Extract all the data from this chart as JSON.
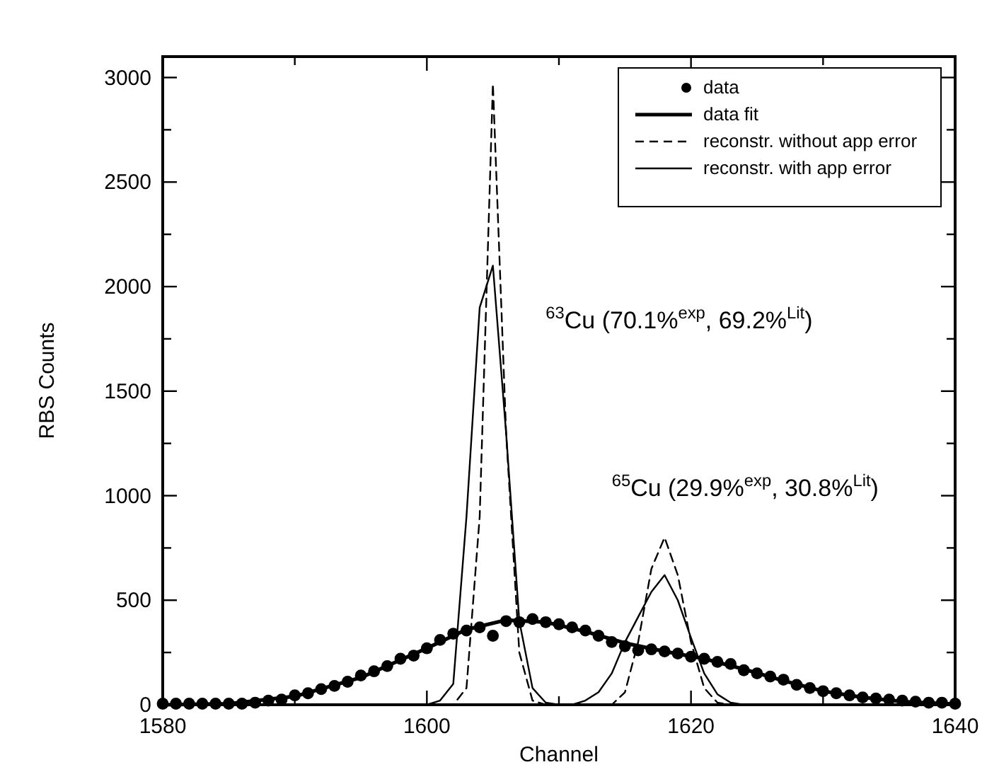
{
  "chart_data": {
    "type": "line",
    "xlabel": "Channel",
    "ylabel": "RBS Counts",
    "xlim": [
      1580,
      1640
    ],
    "ylim": [
      0,
      3100
    ],
    "xticks": [
      1580,
      {
        "value": 1590,
        "label": null
      },
      1600,
      {
        "value": 1610,
        "label": null
      },
      1620,
      {
        "value": 1630,
        "label": null
      },
      1640
    ],
    "yticks": [
      0,
      {
        "value": 250,
        "label": null
      },
      500,
      {
        "value": 750,
        "label": null
      },
      1000,
      {
        "value": 1250,
        "label": null
      },
      1500,
      {
        "value": 1750,
        "label": null
      },
      2000,
      {
        "value": 2250,
        "label": null
      },
      2500,
      {
        "value": 2750,
        "label": null
      },
      3000
    ],
    "grid": false,
    "legend": "top right",
    "annotations": [
      "$^{63}$Cu (70.1%$^{exp}$, 69.2%$^{Lit}$)",
      "$^{65}$Cu (29.9%$^{exp}$, 30.8%$^{Lit}$)"
    ],
    "series": [
      {
        "name": "data",
        "type": "scatter",
        "marker": "circle",
        "color": "#000000",
        "x": [
          1580,
          1581,
          1582,
          1583,
          1584,
          1585,
          1586,
          1587,
          1588,
          1589,
          1590,
          1591,
          1592,
          1593,
          1594,
          1595,
          1596,
          1597,
          1598,
          1599,
          1600,
          1601,
          1602,
          1603,
          1604,
          1605,
          1606,
          1607,
          1608,
          1609,
          1610,
          1611,
          1612,
          1613,
          1614,
          1615,
          1616,
          1617,
          1618,
          1619,
          1620,
          1621,
          1622,
          1623,
          1624,
          1625,
          1626,
          1627,
          1628,
          1629,
          1630,
          1631,
          1632,
          1633,
          1634,
          1635,
          1636,
          1637,
          1638,
          1639,
          1640
        ],
        "values": [
          5,
          5,
          5,
          5,
          5,
          5,
          5,
          10,
          20,
          25,
          45,
          55,
          75,
          90,
          110,
          140,
          160,
          185,
          220,
          235,
          270,
          310,
          340,
          355,
          370,
          330,
          400,
          395,
          410,
          395,
          385,
          370,
          355,
          330,
          300,
          280,
          260,
          265,
          255,
          245,
          230,
          220,
          205,
          195,
          165,
          150,
          135,
          120,
          95,
          80,
          65,
          55,
          45,
          35,
          30,
          25,
          20,
          15,
          10,
          10,
          5
        ]
      },
      {
        "name": "data fit",
        "line_style": "solid",
        "color": "#000000",
        "x": [
          1580,
          1585,
          1590,
          1595,
          1600,
          1603,
          1606,
          1609,
          1612,
          1615,
          1618,
          1621,
          1624,
          1627,
          1630,
          1633,
          1636,
          1640
        ],
        "values": [
          0,
          5,
          40,
          130,
          270,
          360,
          405,
          395,
          350,
          295,
          255,
          220,
          170,
          115,
          65,
          35,
          15,
          3
        ]
      },
      {
        "name": "reconstr. without app error",
        "line_style": "dashed",
        "color": "#000000",
        "x": [
          1580,
          1602,
          1603,
          1604,
          1605,
          1606,
          1607,
          1608,
          1609,
          1614,
          1615,
          1616,
          1617,
          1618,
          1619,
          1620,
          1621,
          1622,
          1623,
          1640
        ],
        "values": [
          0,
          0,
          80,
          900,
          2970,
          1300,
          250,
          20,
          0,
          0,
          60,
          300,
          650,
          800,
          620,
          300,
          80,
          10,
          0,
          0
        ]
      },
      {
        "name": "reconstr. with app error",
        "line_style": "solid",
        "color": "#000000",
        "x": [
          1580,
          1600,
          1601,
          1602,
          1603,
          1604,
          1605,
          1606,
          1607,
          1608,
          1609,
          1610,
          1611,
          1612,
          1613,
          1614,
          1615,
          1616,
          1617,
          1618,
          1619,
          1620,
          1621,
          1622,
          1623,
          1624,
          1640
        ],
        "values": [
          0,
          0,
          20,
          100,
          900,
          1900,
          2100,
          1300,
          400,
          80,
          10,
          0,
          0,
          20,
          60,
          150,
          300,
          420,
          540,
          620,
          500,
          320,
          150,
          50,
          10,
          0,
          0
        ]
      }
    ]
  }
}
